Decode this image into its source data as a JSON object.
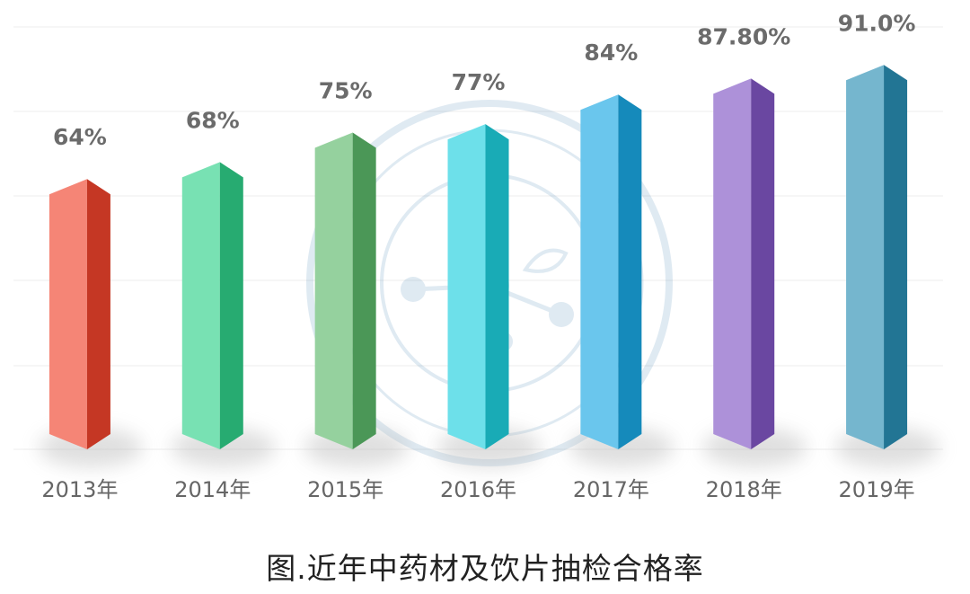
{
  "chart_data": {
    "type": "bar",
    "title": "",
    "xlabel": "",
    "ylabel": "",
    "ylim": [
      0,
      100
    ],
    "grid": true,
    "categories": [
      "2013年",
      "2014年",
      "2015年",
      "2016年",
      "2017年",
      "2018年",
      "2019年"
    ],
    "values": [
      64,
      68,
      75,
      77,
      84,
      87.8,
      91.0
    ],
    "value_labels": [
      "64%",
      "68%",
      "75%",
      "77%",
      "84%",
      "87.80%",
      "91.0%"
    ],
    "colors": [
      "#f0432c",
      "#2fd18a",
      "#5cb86a",
      "#1fd0de",
      "#1aa8e4",
      "#8156c4",
      "#2a8fb4"
    ]
  },
  "caption": "图.近年中药材及饮片抽检合格率"
}
